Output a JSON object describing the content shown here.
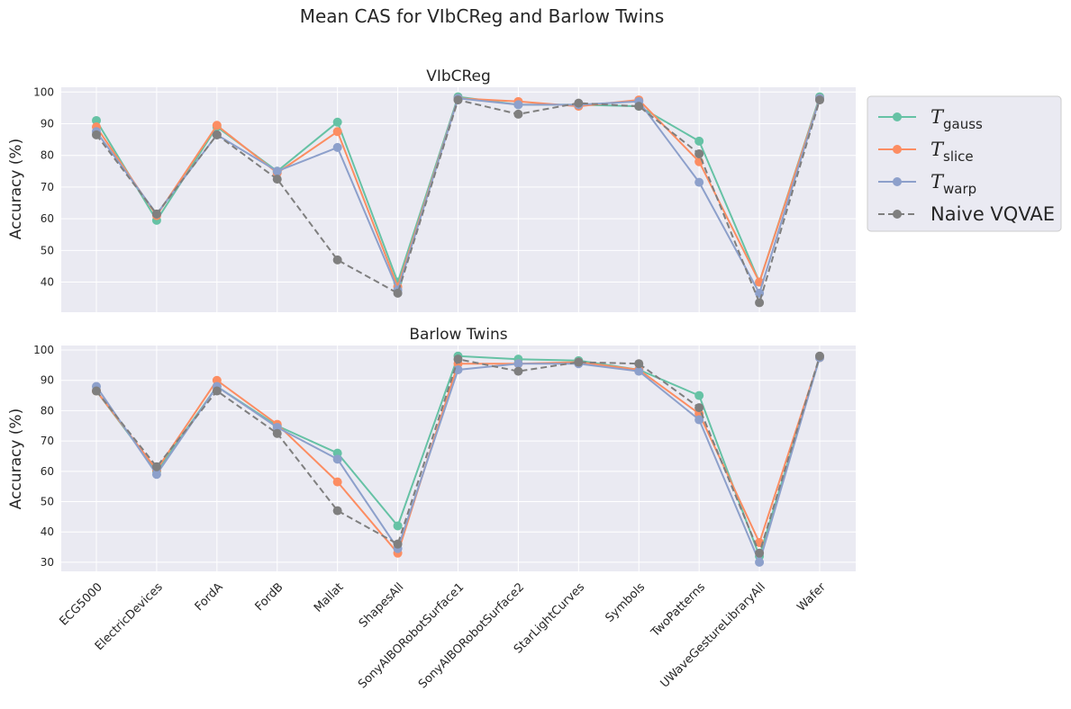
{
  "chart_data": {
    "type": "line",
    "title": "Mean CAS for VIbCReg and Barlow Twins",
    "categories": [
      "ECG5000",
      "ElectricDevices",
      "FordA",
      "FordB",
      "Mallat",
      "ShapesAll",
      "SonyAIBORobotSurface1",
      "SonyAIBORobotSurface2",
      "StarLightCurves",
      "Symbols",
      "TwoPatterns",
      "UWaveGestureLibraryAll",
      "Wafer"
    ],
    "legend": {
      "placement": "outside-right",
      "entries": [
        {
          "base": "T",
          "sub": "gauss"
        },
        {
          "base": "T",
          "sub": "slice"
        },
        {
          "base": "T",
          "sub": "warp"
        },
        {
          "base": "Naive VQVAE",
          "sub": ""
        }
      ]
    },
    "colors": [
      "#66c2a5",
      "#fc8d62",
      "#8da0cb",
      "#7f7f7f"
    ],
    "panels": [
      {
        "title": "VIbCReg",
        "ylabel": "Accuracy (%)",
        "ylim": [
          30.5,
          101.5
        ],
        "yticks": [
          40,
          50,
          60,
          70,
          80,
          90,
          100
        ],
        "series": [
          {
            "name": "T_gauss",
            "values": [
              91.0,
              59.5,
              89.0,
              75.0,
              90.5,
              40.0,
              98.5,
              96.0,
              96.0,
              95.5,
              84.5,
              40.0,
              98.5
            ]
          },
          {
            "name": "T_slice",
            "values": [
              89.0,
              61.0,
              89.5,
              74.5,
              87.5,
              38.5,
              98.0,
              97.0,
              95.5,
              97.5,
              78.0,
              40.0,
              98.0
            ]
          },
          {
            "name": "T_warp",
            "values": [
              87.5,
              61.5,
              86.5,
              75.0,
              82.5,
              37.5,
              98.0,
              96.0,
              96.0,
              97.0,
              71.5,
              36.5,
              98.0
            ]
          },
          {
            "name": "Naive VQVAE",
            "values": [
              86.5,
              61.5,
              86.5,
              72.5,
              47.0,
              36.5,
              97.5,
              93.0,
              96.5,
              95.5,
              80.5,
              33.5,
              97.5
            ]
          }
        ]
      },
      {
        "title": "Barlow Twins",
        "ylabel": "Accuracy (%)",
        "ylim": [
          27.0,
          101.5
        ],
        "yticks": [
          30,
          40,
          50,
          60,
          70,
          80,
          90,
          100
        ],
        "series": [
          {
            "name": "T_gauss",
            "values": [
              86.5,
              60.0,
              88.0,
              75.0,
              66.0,
              42.0,
              98.0,
              97.0,
              96.5,
              93.5,
              85.0,
              32.0,
              97.5
            ]
          },
          {
            "name": "T_slice",
            "values": [
              86.5,
              60.5,
              90.0,
              75.5,
              56.5,
              33.0,
              95.5,
              95.5,
              96.0,
              93.5,
              79.0,
              36.5,
              97.5
            ]
          },
          {
            "name": "T_warp",
            "values": [
              88.0,
              59.0,
              88.0,
              74.5,
              64.0,
              34.5,
              93.5,
              95.5,
              95.5,
              93.0,
              77.0,
              30.0,
              97.5
            ]
          },
          {
            "name": "Naive VQVAE",
            "values": [
              86.5,
              61.5,
              86.5,
              72.5,
              47.0,
              36.0,
              97.0,
              93.0,
              96.0,
              95.5,
              81.0,
              33.0,
              98.0
            ]
          }
        ]
      }
    ]
  }
}
